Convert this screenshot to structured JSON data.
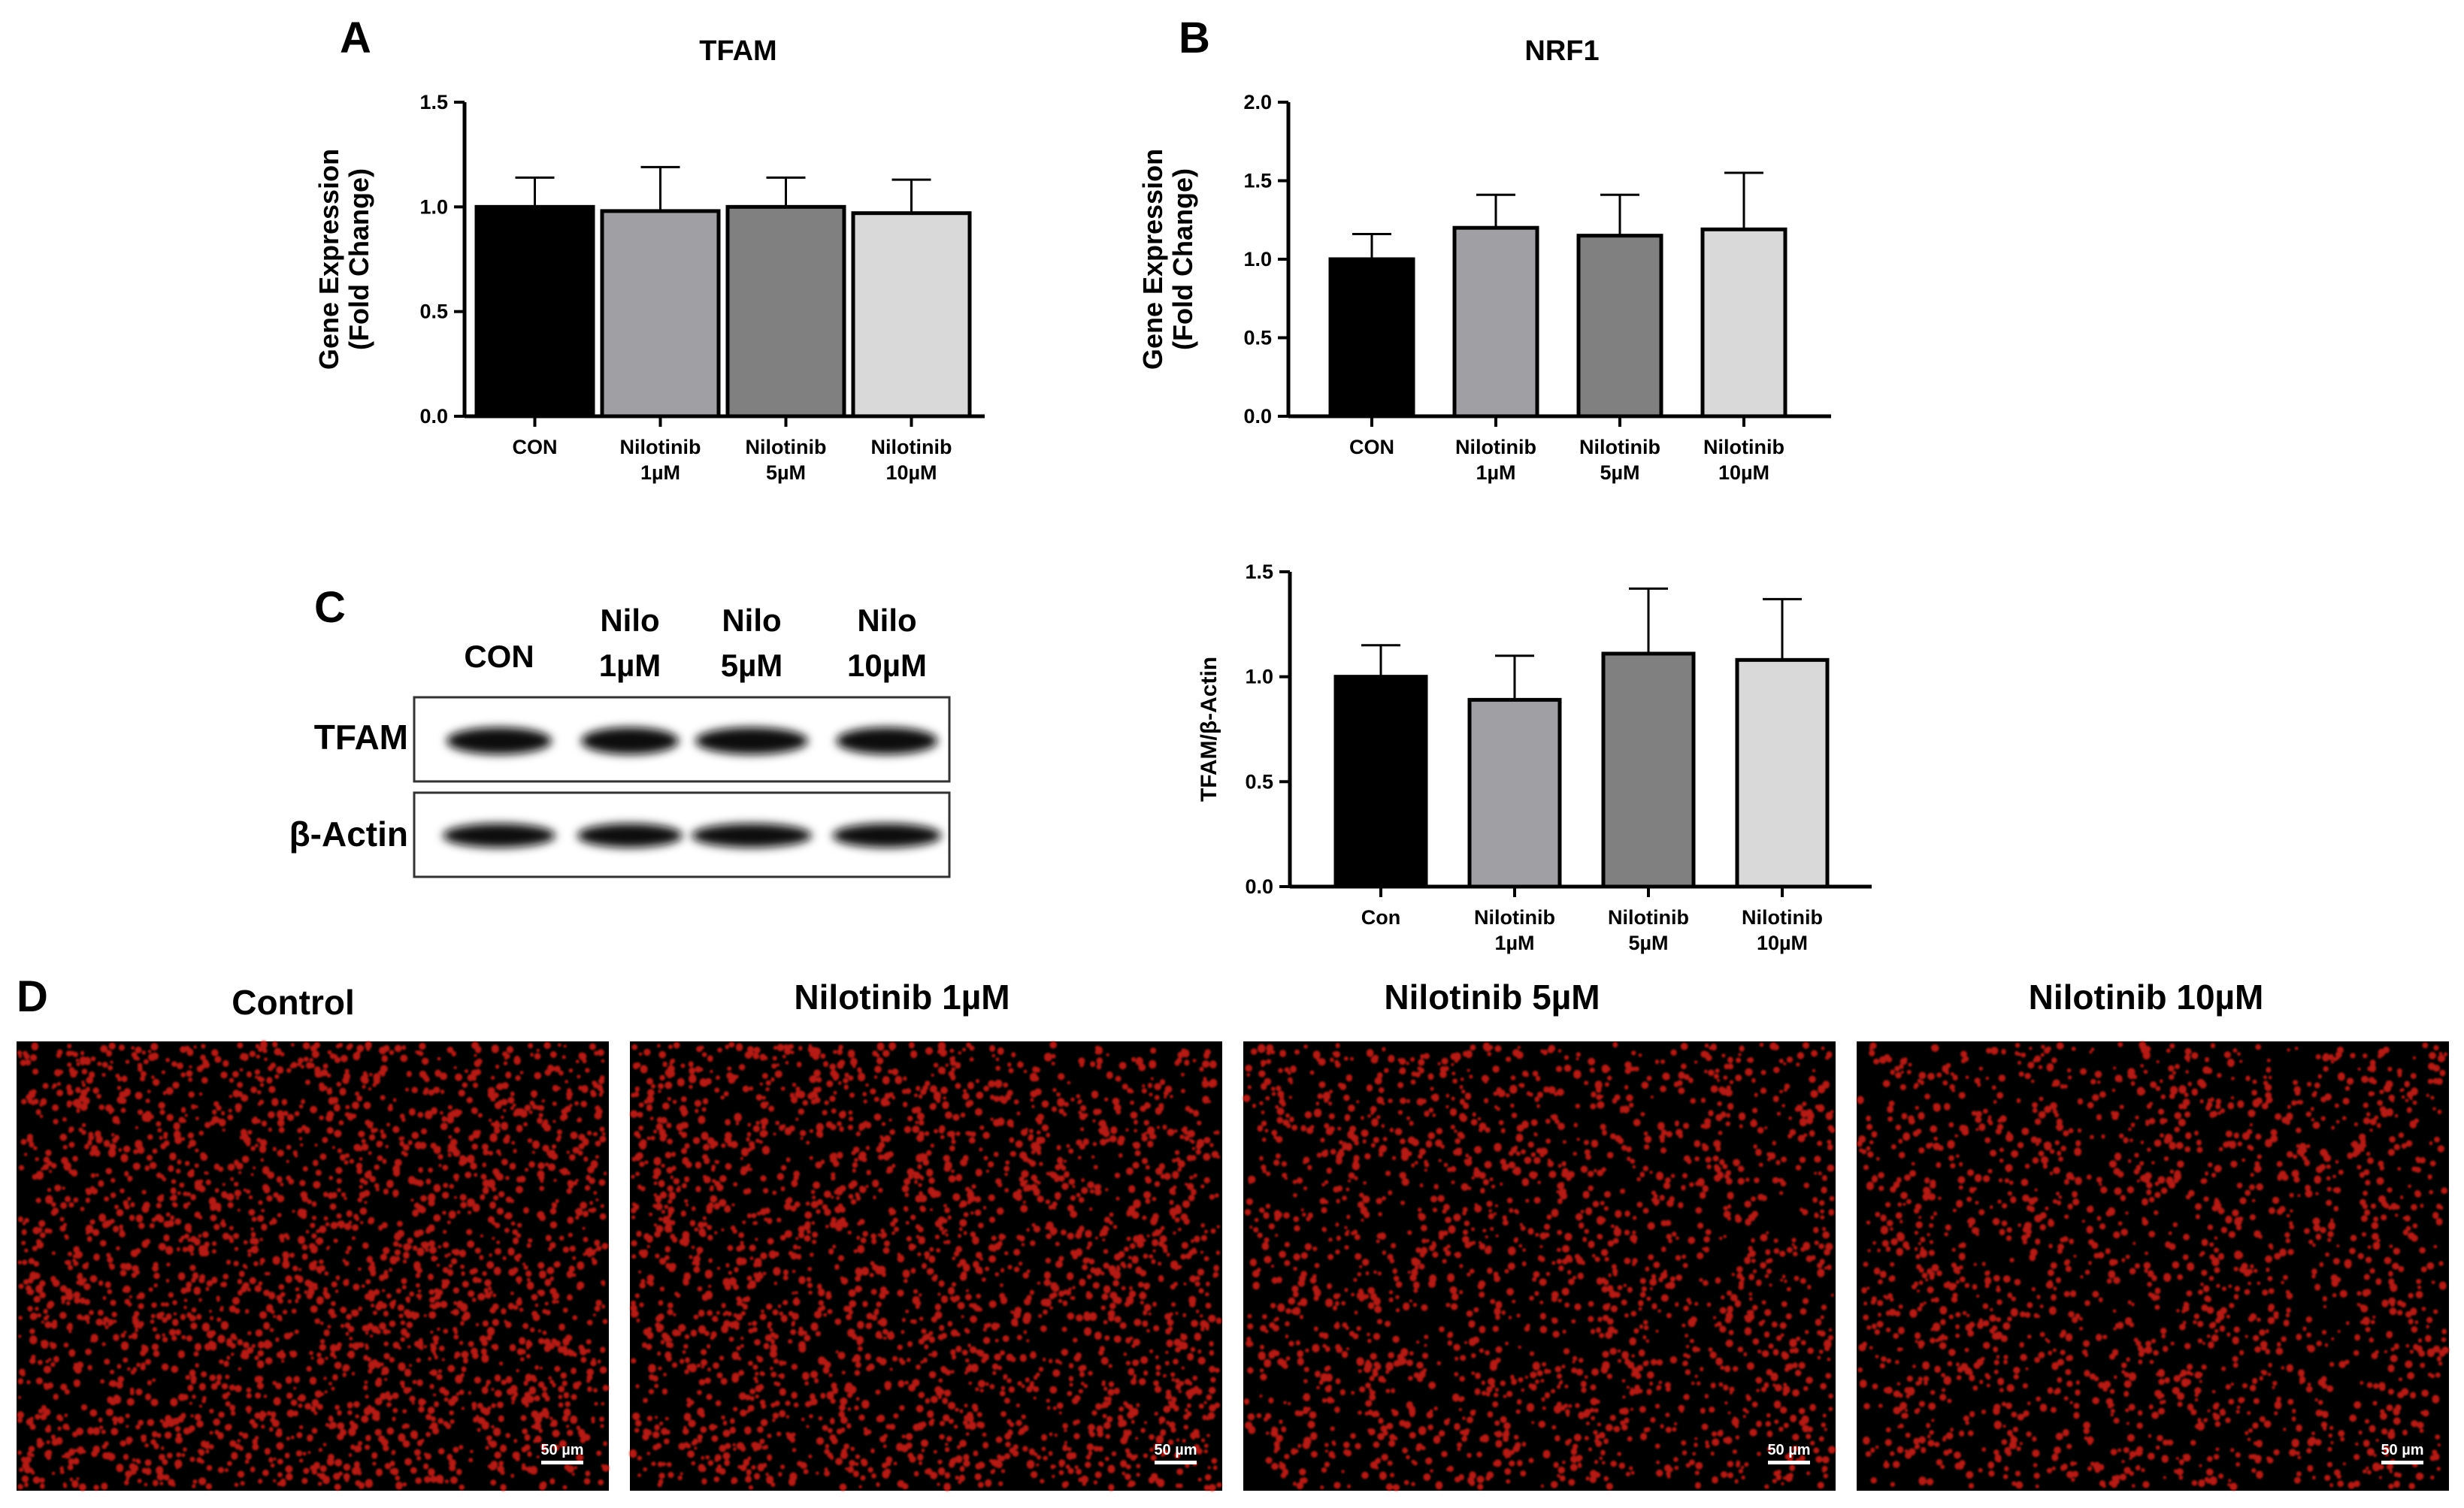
{
  "panels": {
    "A": "A",
    "B": "B",
    "C": "C",
    "D": "D"
  },
  "chart_data": [
    {
      "id": "tfam-expression",
      "type": "bar",
      "title": "TFAM",
      "ylabel_lines": [
        "Gene Expression",
        "(Fold Change)"
      ],
      "categories": [
        [
          "CON"
        ],
        [
          "Nilotinib",
          "1µM"
        ],
        [
          "Nilotinib",
          "5µM"
        ],
        [
          "Nilotinib",
          "10µM"
        ]
      ],
      "values": [
        1.0,
        0.98,
        1.0,
        0.97
      ],
      "errors": [
        0.14,
        0.21,
        0.14,
        0.16
      ],
      "colors": [
        "#000000",
        "#a0a0a4",
        "#808080",
        "#d9d9d9"
      ],
      "ylim": [
        0,
        1.5
      ],
      "yticks": [
        "0.0",
        "0.5",
        "1.0",
        "1.5"
      ]
    },
    {
      "id": "nrf1-expression",
      "type": "bar",
      "title": "NRF1",
      "ylabel_lines": [
        "Gene Expression",
        "(Fold Change)"
      ],
      "categories": [
        [
          "CON"
        ],
        [
          "Nilotinib",
          "1µM"
        ],
        [
          "Nilotinib",
          "5µM"
        ],
        [
          "Nilotinib",
          "10µM"
        ]
      ],
      "values": [
        1.0,
        1.2,
        1.15,
        1.19
      ],
      "errors": [
        0.16,
        0.21,
        0.26,
        0.36
      ],
      "colors": [
        "#000000",
        "#a0a0a4",
        "#808080",
        "#d9d9d9"
      ],
      "ylim": [
        0,
        2.0
      ],
      "yticks": [
        "0.0",
        "0.5",
        "1.0",
        "1.5",
        "2.0"
      ]
    },
    {
      "id": "tfam-actin-ratio",
      "type": "bar",
      "title": "",
      "ylabel_lines": [
        "TFAM/β-Actin"
      ],
      "categories": [
        [
          "Con"
        ],
        [
          "Nilotinib",
          "1µM"
        ],
        [
          "Nilotinib",
          "5µM"
        ],
        [
          "Nilotinib",
          "10µM"
        ]
      ],
      "values": [
        1.0,
        0.89,
        1.11,
        1.08
      ],
      "errors": [
        0.15,
        0.21,
        0.31,
        0.29
      ],
      "colors": [
        "#000000",
        "#a0a0a4",
        "#808080",
        "#d9d9d9"
      ],
      "ylim": [
        0,
        1.5
      ],
      "yticks": [
        "0.0",
        "0.5",
        "1.0",
        "1.5"
      ]
    }
  ],
  "blot": {
    "lanes": [
      [
        "CON"
      ],
      [
        "Nilo",
        "1µM"
      ],
      [
        "Nilo",
        "5µM"
      ],
      [
        "Nilo",
        "10µM"
      ]
    ],
    "rows": [
      "TFAM",
      "β-Actin"
    ]
  },
  "images": {
    "titles": [
      "Control",
      "Nilotinib 1µM",
      "Nilotinib 5µM",
      "Nilotinib 10µM"
    ],
    "scale_bar": "50 µm",
    "stain_color": "#e8201c"
  }
}
